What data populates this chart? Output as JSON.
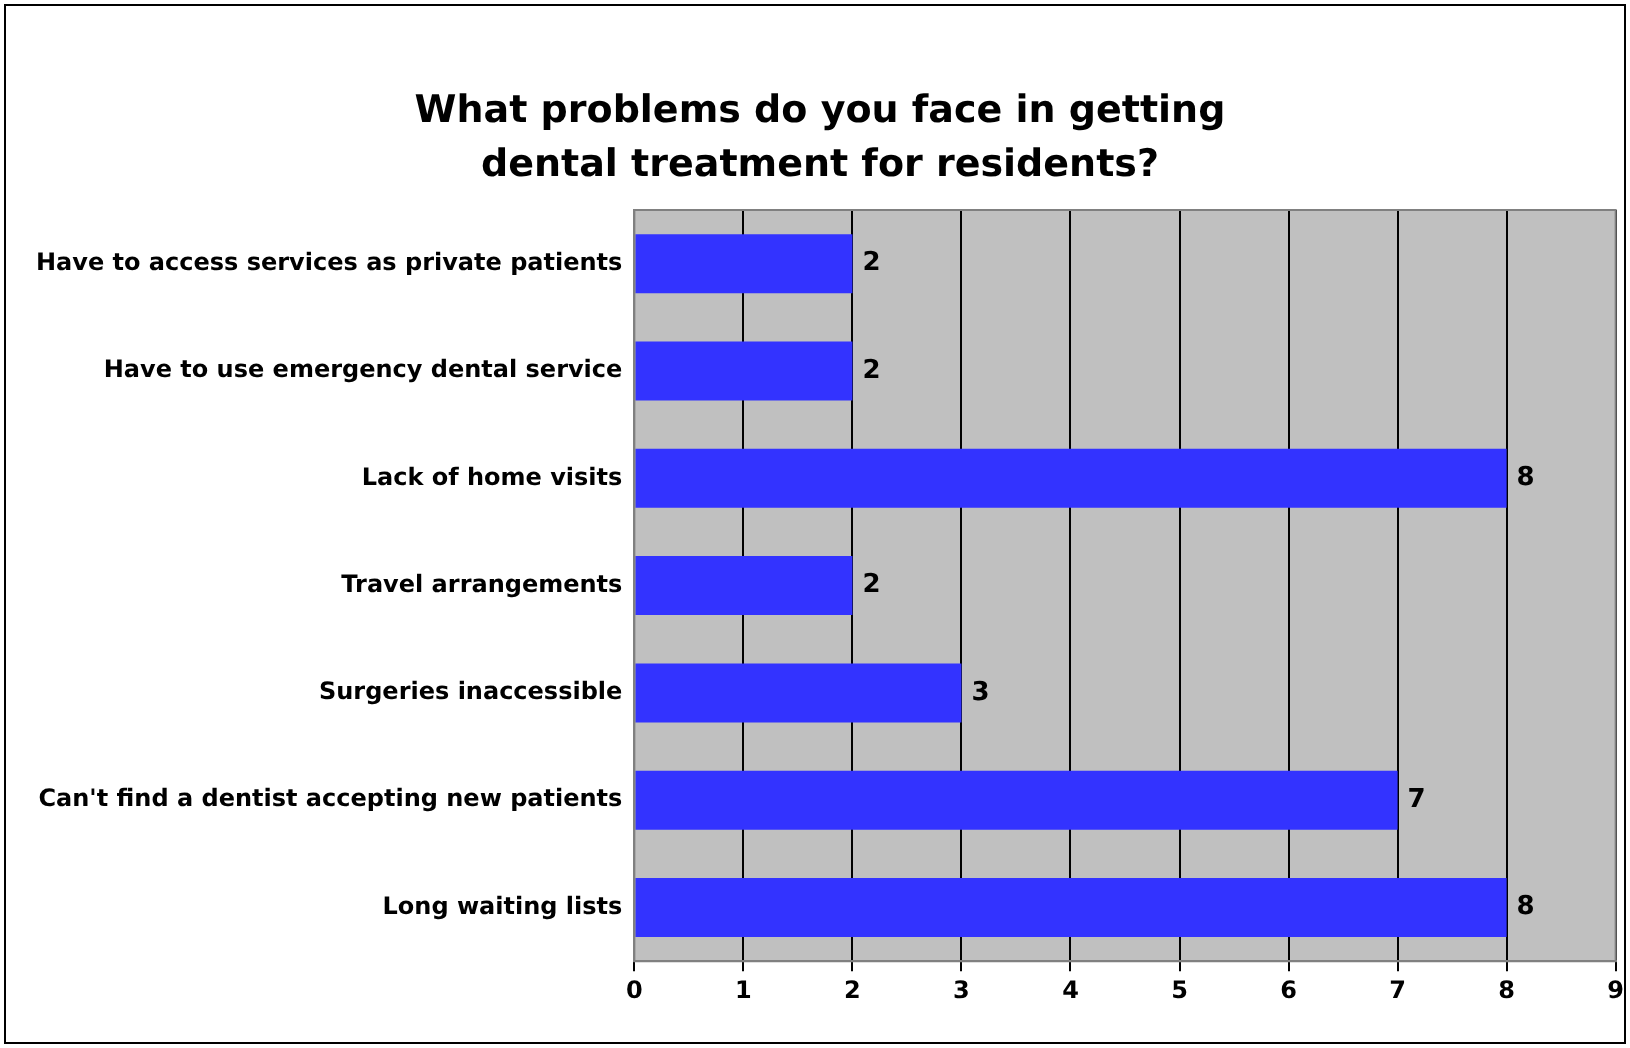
{
  "chart_data": {
    "type": "bar",
    "orientation": "horizontal",
    "title": "What problems do you face in getting dental treatment for residents?",
    "categories": [
      "Have to access services as private patients",
      "Have to use emergency dental service",
      "Lack of home visits",
      "Travel arrangements",
      "Surgeries inaccessible",
      "Can't find a dentist accepting new patients",
      "Long waiting lists"
    ],
    "values": [
      2,
      2,
      8,
      2,
      3,
      7,
      8
    ],
    "color": "#3333ff",
    "xlim": [
      0,
      9
    ],
    "xticks": [
      0,
      1,
      2,
      3,
      4,
      5,
      6,
      7,
      8,
      9
    ],
    "grid": "x",
    "data_labels": true,
    "legend": false
  }
}
